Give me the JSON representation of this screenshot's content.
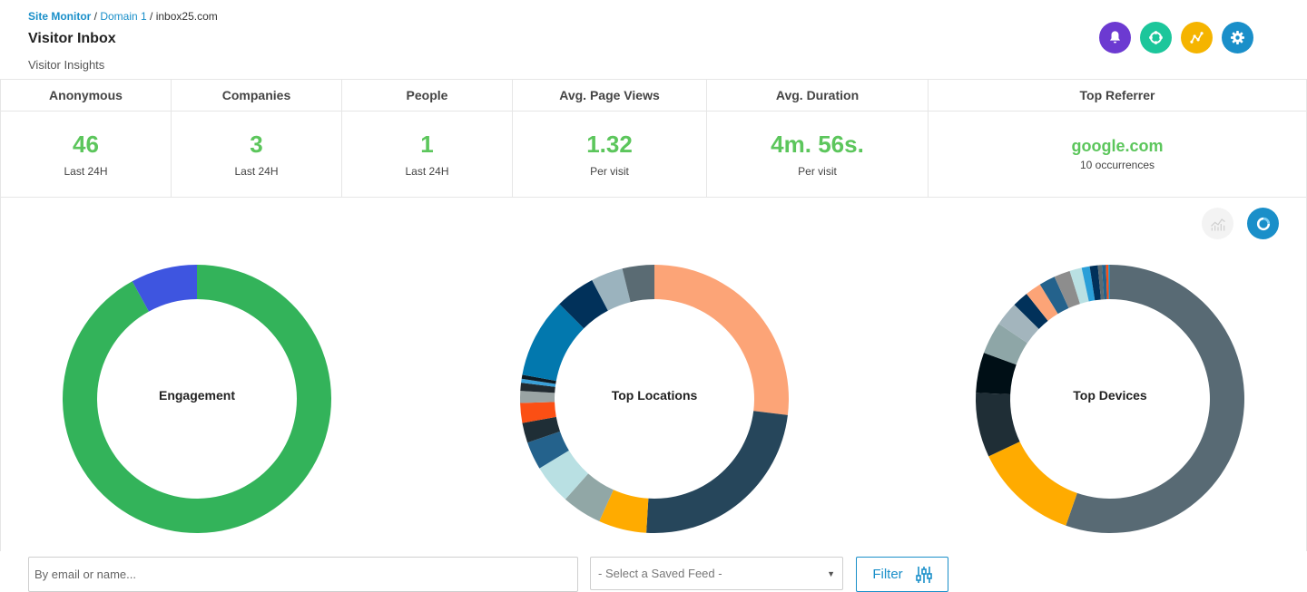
{
  "breadcrumb": {
    "root": "Site Monitor",
    "sep1": " / ",
    "domain": "Domain 1",
    "sep2": " / ",
    "site": "inbox25.com"
  },
  "page": {
    "title": "Visitor Inbox",
    "subtitle": "Visitor Insights"
  },
  "header_buttons": [
    {
      "icon": "bell-icon",
      "color": "#6c3ad1"
    },
    {
      "icon": "refresh-icon",
      "color": "#1cc69b"
    },
    {
      "icon": "graph-icon",
      "color": "#f5b400"
    },
    {
      "icon": "gear-icon",
      "color": "#1a8fc9"
    }
  ],
  "stats": [
    {
      "label": "Anonymous",
      "value": "46",
      "sub": "Last 24H"
    },
    {
      "label": "Companies",
      "value": "3",
      "sub": "Last 24H"
    },
    {
      "label": "People",
      "value": "1",
      "sub": "Last 24H"
    },
    {
      "label": "Avg. Page Views",
      "value": "1.32",
      "sub": "Per visit"
    },
    {
      "label": "Avg. Duration",
      "value": "4m. 56s.",
      "sub": "Per visit"
    },
    {
      "label": "Top Referrer",
      "value": "google.com",
      "sub": "10 occurrences"
    }
  ],
  "chart_toggle": {
    "line_icon": "line-chart-icon",
    "donut_icon": "donut-chart-icon",
    "active_color": "#1a8fc9"
  },
  "chart_data": [
    {
      "type": "pie",
      "title": "Engagement",
      "values": [
        92,
        8
      ],
      "colors": [
        "#33b35a",
        "#3e55e0"
      ]
    },
    {
      "type": "pie",
      "title": "Top Locations",
      "values": [
        28,
        25,
        6,
        5,
        5,
        3.5,
        2.5,
        2.5,
        1.5,
        1,
        0.5,
        0.5,
        10,
        5,
        4,
        4
      ],
      "colors": [
        "#fca477",
        "#26465b",
        "#ffab00",
        "#91a7a6",
        "#b9e0e3",
        "#24628c",
        "#1f2e36",
        "#fb4f14",
        "#9aa4a4",
        "#212a30",
        "#3aa0d8",
        "#0c1a24",
        "#0278ae",
        "#01315a",
        "#9bb3be",
        "#5a6b73"
      ]
    },
    {
      "type": "pie",
      "title": "Top Devices",
      "values": [
        57,
        13,
        8,
        5,
        4,
        3,
        2,
        2,
        2,
        2,
        1.5,
        1,
        1,
        0.5,
        0.5,
        0.3,
        0.2
      ],
      "colors": [
        "#586a74",
        "#ffab00",
        "#1f2e36",
        "#000f16",
        "#8ea6a7",
        "#a3b5bd",
        "#01315a",
        "#fca477",
        "#24628c",
        "#8d8d8d",
        "#b9e0e3",
        "#2a9fd8",
        "#01315a",
        "#5a6b73",
        "#24628c",
        "#fb4f14",
        "#1a8fc9"
      ]
    }
  ],
  "search": {
    "placeholder": "By email or name..."
  },
  "saved_feed": {
    "selected": "- Select a Saved Feed -"
  },
  "filter": {
    "label": "Filter"
  }
}
